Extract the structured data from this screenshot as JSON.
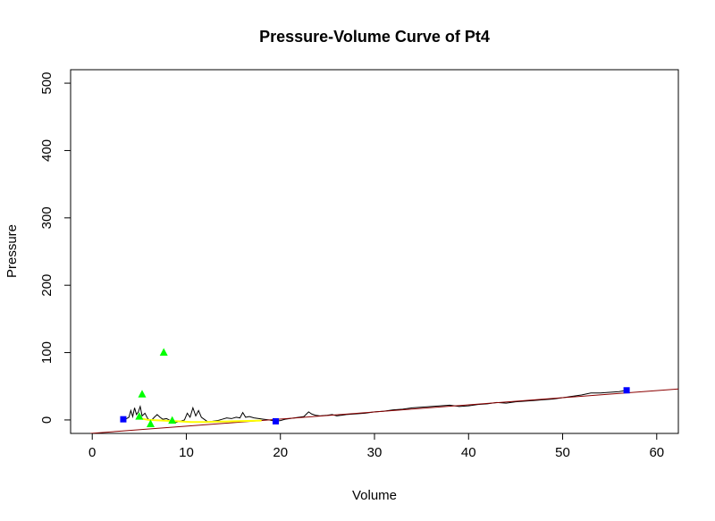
{
  "chart_data": {
    "type": "line",
    "title": "Pressure-Volume Curve of Pt4",
    "xlabel": "Volume",
    "ylabel": "Pressure",
    "xlim": [
      -2.3,
      62.3
    ],
    "ylim": [
      -20,
      520
    ],
    "xticks": [
      0,
      10,
      20,
      30,
      40,
      50,
      60
    ],
    "yticks": [
      0,
      100,
      200,
      300,
      400,
      500
    ],
    "grid": false,
    "colors": {
      "trace": "#000000",
      "fit_line": "#8b0000",
      "curve": "#ffff00",
      "triangles": "#00ff00",
      "squares": "#0000ff"
    },
    "series": [
      {
        "type": "line",
        "color": "#000000",
        "points": [
          [
            3.4,
            0
          ],
          [
            3.9,
            4
          ],
          [
            4.1,
            14
          ],
          [
            4.3,
            5
          ],
          [
            4.5,
            18
          ],
          [
            4.7,
            8
          ],
          [
            4.9,
            12
          ],
          [
            5.1,
            20
          ],
          [
            5.3,
            6
          ],
          [
            5.6,
            10
          ],
          [
            5.9,
            2
          ],
          [
            6.2,
            -2
          ],
          [
            6.6,
            4
          ],
          [
            6.9,
            8
          ],
          [
            7.2,
            4
          ],
          [
            7.5,
            1
          ],
          [
            7.9,
            2
          ],
          [
            8.3,
            -1
          ],
          [
            8.8,
            -4
          ],
          [
            9.3,
            -2
          ],
          [
            9.8,
            0
          ],
          [
            10.1,
            10
          ],
          [
            10.4,
            4
          ],
          [
            10.7,
            18
          ],
          [
            11.0,
            6
          ],
          [
            11.3,
            14
          ],
          [
            11.6,
            4
          ],
          [
            11.9,
            1
          ],
          [
            12.3,
            -3
          ],
          [
            12.8,
            -2
          ],
          [
            13.3,
            -1
          ],
          [
            13.8,
            1
          ],
          [
            14.3,
            3
          ],
          [
            14.8,
            2
          ],
          [
            15.3,
            4
          ],
          [
            15.7,
            3
          ],
          [
            16.0,
            11
          ],
          [
            16.3,
            4
          ],
          [
            16.7,
            5
          ],
          [
            17.2,
            3
          ],
          [
            17.7,
            2
          ],
          [
            18.2,
            1
          ],
          [
            18.8,
            0
          ],
          [
            19.5,
            -2
          ],
          [
            20.0,
            -1
          ],
          [
            20.5,
            1
          ],
          [
            21.0,
            2
          ],
          [
            21.5,
            3
          ],
          [
            22.0,
            4
          ],
          [
            22.5,
            5
          ],
          [
            23.0,
            12
          ],
          [
            23.3,
            9
          ],
          [
            23.7,
            7
          ],
          [
            24.2,
            6
          ],
          [
            25.0,
            7
          ],
          [
            25.5,
            8
          ],
          [
            26.0,
            6
          ],
          [
            27.0,
            8
          ],
          [
            28.0,
            9
          ],
          [
            29.0,
            10
          ],
          [
            30.0,
            12
          ],
          [
            31.0,
            13
          ],
          [
            32.0,
            15
          ],
          [
            33.0,
            16
          ],
          [
            34.0,
            18
          ],
          [
            35.0,
            19
          ],
          [
            36.0,
            20
          ],
          [
            37.0,
            21
          ],
          [
            38.0,
            22
          ],
          [
            39.0,
            20
          ],
          [
            40.0,
            21
          ],
          [
            41.0,
            23
          ],
          [
            42.0,
            24
          ],
          [
            43.0,
            26
          ],
          [
            44.0,
            25
          ],
          [
            45.0,
            27
          ],
          [
            46.0,
            28
          ],
          [
            47.0,
            29
          ],
          [
            48.0,
            30
          ],
          [
            49.0,
            31
          ],
          [
            50.0,
            33
          ],
          [
            51.0,
            35
          ],
          [
            52.0,
            37
          ],
          [
            53.0,
            40
          ],
          [
            54.0,
            40
          ],
          [
            55.0,
            41
          ],
          [
            56.0,
            42
          ],
          [
            56.8,
            44
          ]
        ]
      },
      {
        "type": "line",
        "color": "#8b0000",
        "points": [
          [
            -0.2,
            -20
          ],
          [
            62.3,
            46
          ]
        ]
      },
      {
        "type": "line",
        "color": "#ffff00",
        "points": [
          [
            4.8,
            3
          ],
          [
            6.0,
            0
          ],
          [
            7.5,
            -1
          ],
          [
            9.0,
            -2
          ],
          [
            10.5,
            -3
          ],
          [
            12.0,
            -3
          ],
          [
            13.5,
            -2.5
          ],
          [
            15.0,
            -2
          ],
          [
            16.5,
            -1.5
          ],
          [
            18.0,
            -1
          ]
        ]
      },
      {
        "type": "scatter",
        "marker": "triangle",
        "color": "#00ff00",
        "points": [
          [
            5.3,
            38
          ],
          [
            7.6,
            100
          ],
          [
            5.0,
            5
          ],
          [
            6.2,
            -6
          ],
          [
            8.5,
            -1
          ]
        ]
      },
      {
        "type": "scatter",
        "marker": "square",
        "color": "#0000ff",
        "points": [
          [
            3.3,
            1
          ],
          [
            19.5,
            -2
          ],
          [
            56.8,
            44
          ]
        ]
      }
    ]
  }
}
